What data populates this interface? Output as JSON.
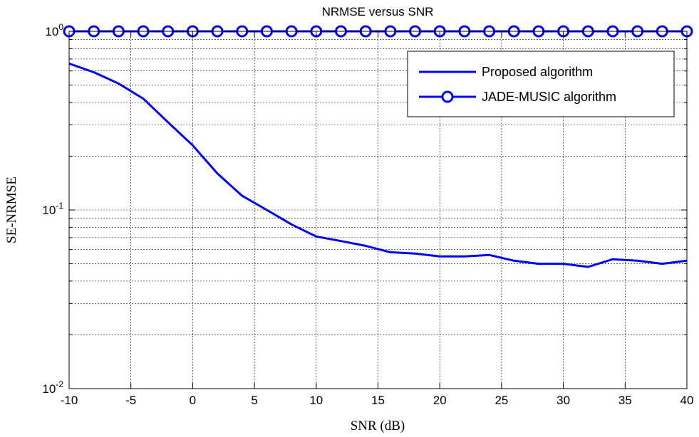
{
  "chart_data": {
    "type": "line",
    "title": "NRMSE versus SNR",
    "xlabel": "SNR (dB)",
    "ylabel": "SE-NRMSE",
    "yscale": "log",
    "xlim": [
      -10,
      40
    ],
    "ylim": [
      0.01,
      1
    ],
    "x_ticks": [
      "-10",
      "-5",
      "0",
      "5",
      "10",
      "15",
      "20",
      "25",
      "30",
      "35",
      "40"
    ],
    "y_ticks": [
      {
        "base": "10",
        "exp": "-2"
      },
      {
        "base": "10",
        "exp": "-1"
      },
      {
        "base": "10",
        "exp": "0"
      }
    ],
    "grid": true,
    "legend_position": "top-right",
    "x": [
      -10,
      -8,
      -6,
      -4,
      -2,
      0,
      2,
      4,
      6,
      8,
      10,
      12,
      14,
      16,
      18,
      20,
      22,
      24,
      26,
      28,
      30,
      32,
      34,
      36,
      38,
      40
    ],
    "series": [
      {
        "name": "Proposed algorithm",
        "color": "#0000ff",
        "marker": "none",
        "values": [
          0.66,
          0.59,
          0.51,
          0.42,
          0.31,
          0.23,
          0.16,
          0.12,
          0.1,
          0.083,
          0.071,
          0.067,
          0.063,
          0.058,
          0.057,
          0.055,
          0.055,
          0.056,
          0.052,
          0.05,
          0.05,
          0.048,
          0.053,
          0.052,
          0.05,
          0.052
        ]
      },
      {
        "name": "JADE-MUSIC algorithm",
        "color": "#0000ff",
        "marker": "circle",
        "values": [
          1,
          1,
          1,
          1,
          1,
          1,
          1,
          1,
          1,
          1,
          1,
          1,
          1,
          1,
          1,
          1,
          1,
          1,
          1,
          1,
          1,
          1,
          1,
          1,
          1,
          1
        ]
      }
    ]
  }
}
